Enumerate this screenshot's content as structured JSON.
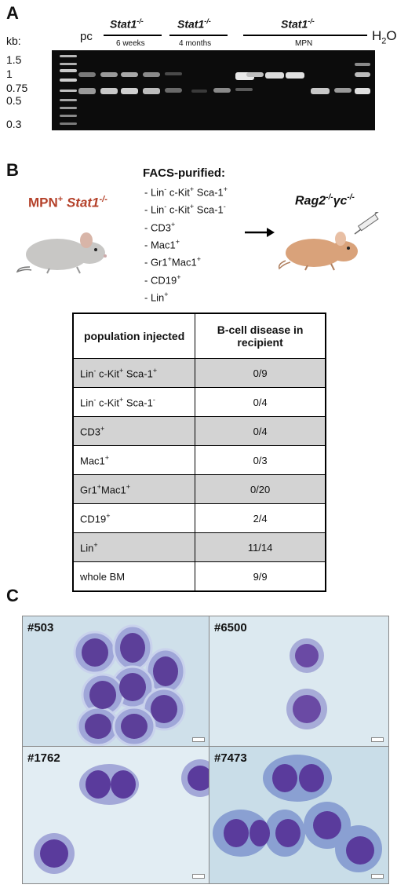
{
  "panelA": {
    "letter": "A",
    "kb_label": "kb:",
    "sizes": [
      "1.5",
      "1",
      "0.75",
      "0.5",
      "0.3"
    ],
    "pc": "pc",
    "group1": {
      "name": "Stat1",
      "sup": "-/-",
      "sub": "6 weeks"
    },
    "group2": {
      "name": "Stat1",
      "sup": "-/-",
      "sub": "4 months"
    },
    "group3": {
      "name": "Stat1",
      "sup": "-/-",
      "sub": "MPN"
    },
    "water": "H",
    "water_sub": "2",
    "water_end": "O",
    "star": "*"
  },
  "panelB": {
    "letter": "B",
    "donor": {
      "prefix": "MPN",
      "prefix_sup": "+",
      "name": " Stat1",
      "sup": "-/-"
    },
    "facs_title": "FACS-purified:",
    "facs_items": [
      {
        "a": "- Lin",
        "a_sup": "-",
        "b": " c-Kit",
        "b_sup": "+",
        "c": " Sca-1",
        "c_sup": "+"
      },
      {
        "a": "- Lin",
        "a_sup": "-",
        "b": " c-Kit",
        "b_sup": "+",
        "c": " Sca-1",
        "c_sup": "-"
      },
      {
        "a": "- CD3",
        "a_sup": "+"
      },
      {
        "a": "- Mac1",
        "a_sup": "+"
      },
      {
        "a": "- Gr1",
        "a_sup": "+",
        "b": "Mac1",
        "b_sup": "+"
      },
      {
        "a": "- CD19",
        "a_sup": "+"
      },
      {
        "a": "- Lin",
        "a_sup": "+"
      }
    ],
    "recipient": {
      "a": "Rag2",
      "a_sup": "-/-",
      "b": "γc",
      "b_sup": "-/-"
    },
    "table": {
      "col1": "population injected",
      "col2": "B-cell disease in recipient",
      "rows": [
        {
          "a": "Lin",
          "a_sup": "-",
          "b": " c-Kit",
          "b_sup": "+",
          "c": " Sca-1",
          "c_sup": "+",
          "value": "0/9"
        },
        {
          "a": "Lin",
          "a_sup": "-",
          "b": " c-Kit",
          "b_sup": "+",
          "c": " Sca-1",
          "c_sup": "-",
          "value": "0/4"
        },
        {
          "a": "CD3",
          "a_sup": "+",
          "value": "0/4"
        },
        {
          "a": "Mac1",
          "a_sup": "+",
          "value": "0/3"
        },
        {
          "a": "Gr1",
          "a_sup": "+",
          "b": "Mac1",
          "b_sup": "+",
          "value": "0/20"
        },
        {
          "a": "CD19",
          "a_sup": "+",
          "value": "2/4"
        },
        {
          "a": "Lin",
          "a_sup": "+",
          "value": "11/14"
        },
        {
          "a": "whole BM",
          "value": "9/9"
        }
      ]
    }
  },
  "panelC": {
    "letter": "C",
    "photos": [
      "#503",
      "#6500",
      "#1762",
      "#7473"
    ]
  }
}
